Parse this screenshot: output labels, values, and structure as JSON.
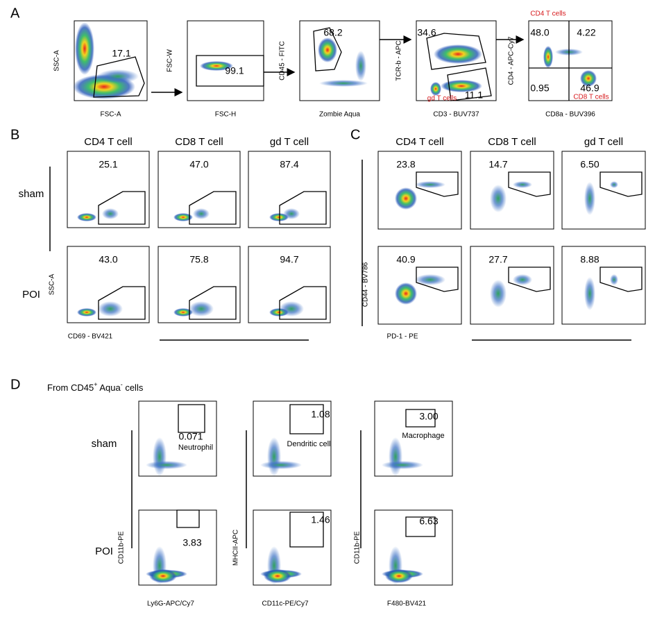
{
  "panels": [
    {
      "letter": "A",
      "plots": [
        {
          "y_label": "SSC-A",
          "x_label": "FSC-A",
          "gates": [
            "17.1"
          ]
        },
        {
          "y_label": "FSC-W",
          "x_label": "FSC-H",
          "gates": [
            "99.1"
          ]
        },
        {
          "y_label": "CD45 - FITC",
          "x_label": "Zombie Aqua",
          "gates": [
            "68.2"
          ]
        },
        {
          "y_label": "TCR-b - APC",
          "x_label": "CD3 - BUV737",
          "gates": [
            "34.6",
            "11.1"
          ]
        },
        {
          "y_label": "CD4 - APC-Cy7",
          "x_label": "CD8a - BUV396",
          "gates": [
            "48.0",
            "4.22",
            "0.95",
            "46.9"
          ]
        }
      ],
      "annotations": [
        "CD4 T cells",
        "gd T cells",
        "CD8 T cells"
      ]
    },
    {
      "letter": "B",
      "columns": [
        "CD4 T cell",
        "CD8 T cell",
        "gd T cell"
      ],
      "rows": [
        "sham",
        "POI"
      ],
      "values": [
        [
          "25.1",
          "47.0",
          "87.4"
        ],
        [
          "43.0",
          "75.8",
          "94.7"
        ]
      ],
      "y_label": "SSC-A",
      "x_label": "CD69 - BV421"
    },
    {
      "letter": "C",
      "columns": [
        "CD4 T cell",
        "CD8 T cell",
        "gd T cell"
      ],
      "values": [
        [
          "23.8",
          "14.7",
          "6.50"
        ],
        [
          "40.9",
          "27.7",
          "8.88"
        ]
      ],
      "y_label": "CD44 - BV786",
      "x_label": "PD-1 - PE"
    },
    {
      "letter": "D",
      "subtitle": [
        "From CD45",
        "+",
        " Aqua",
        "-",
        " cells"
      ],
      "rows": [
        "sham",
        "POI"
      ],
      "populations": [
        "Neutrophil",
        "Dendritic cell",
        "Macrophage"
      ],
      "values": [
        [
          "0.071",
          "1.08",
          "3.00"
        ],
        [
          "3.83",
          "1.46",
          "6.63"
        ]
      ],
      "y_labels": [
        "CD11b-PE",
        "MHCII-APC",
        "CD11b-PE"
      ],
      "x_labels": [
        "Ly6G-APC/Cy7",
        "CD11c-PE/Cy7",
        "F480-BV421"
      ]
    }
  ]
}
